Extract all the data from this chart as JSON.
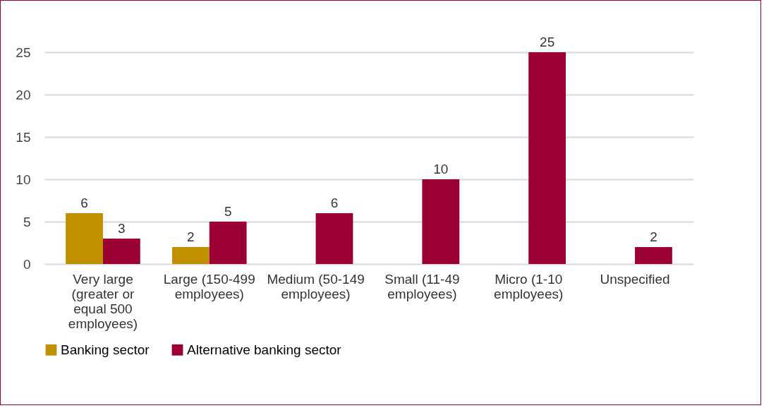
{
  "chart_data": {
    "type": "bar",
    "categories": [
      "Very large (greater or equal 500 employees)",
      "Large (150-499 employees)",
      "Medium (50-149 employees)",
      "Small (11-49 employees)",
      "Micro (1-10 employees)",
      "Unspecified"
    ],
    "series": [
      {
        "name": "Banking sector",
        "color": "#c09000",
        "values": [
          6,
          2,
          null,
          null,
          null,
          null
        ]
      },
      {
        "name": "Alternative banking sector",
        "color": "#9b0032",
        "values": [
          3,
          5,
          6,
          10,
          25,
          2
        ]
      }
    ],
    "ylim": [
      0,
      25
    ],
    "yticks": [
      0,
      5,
      10,
      15,
      20,
      25
    ],
    "grid": "y",
    "legend": "bottom",
    "data_labels": true
  }
}
